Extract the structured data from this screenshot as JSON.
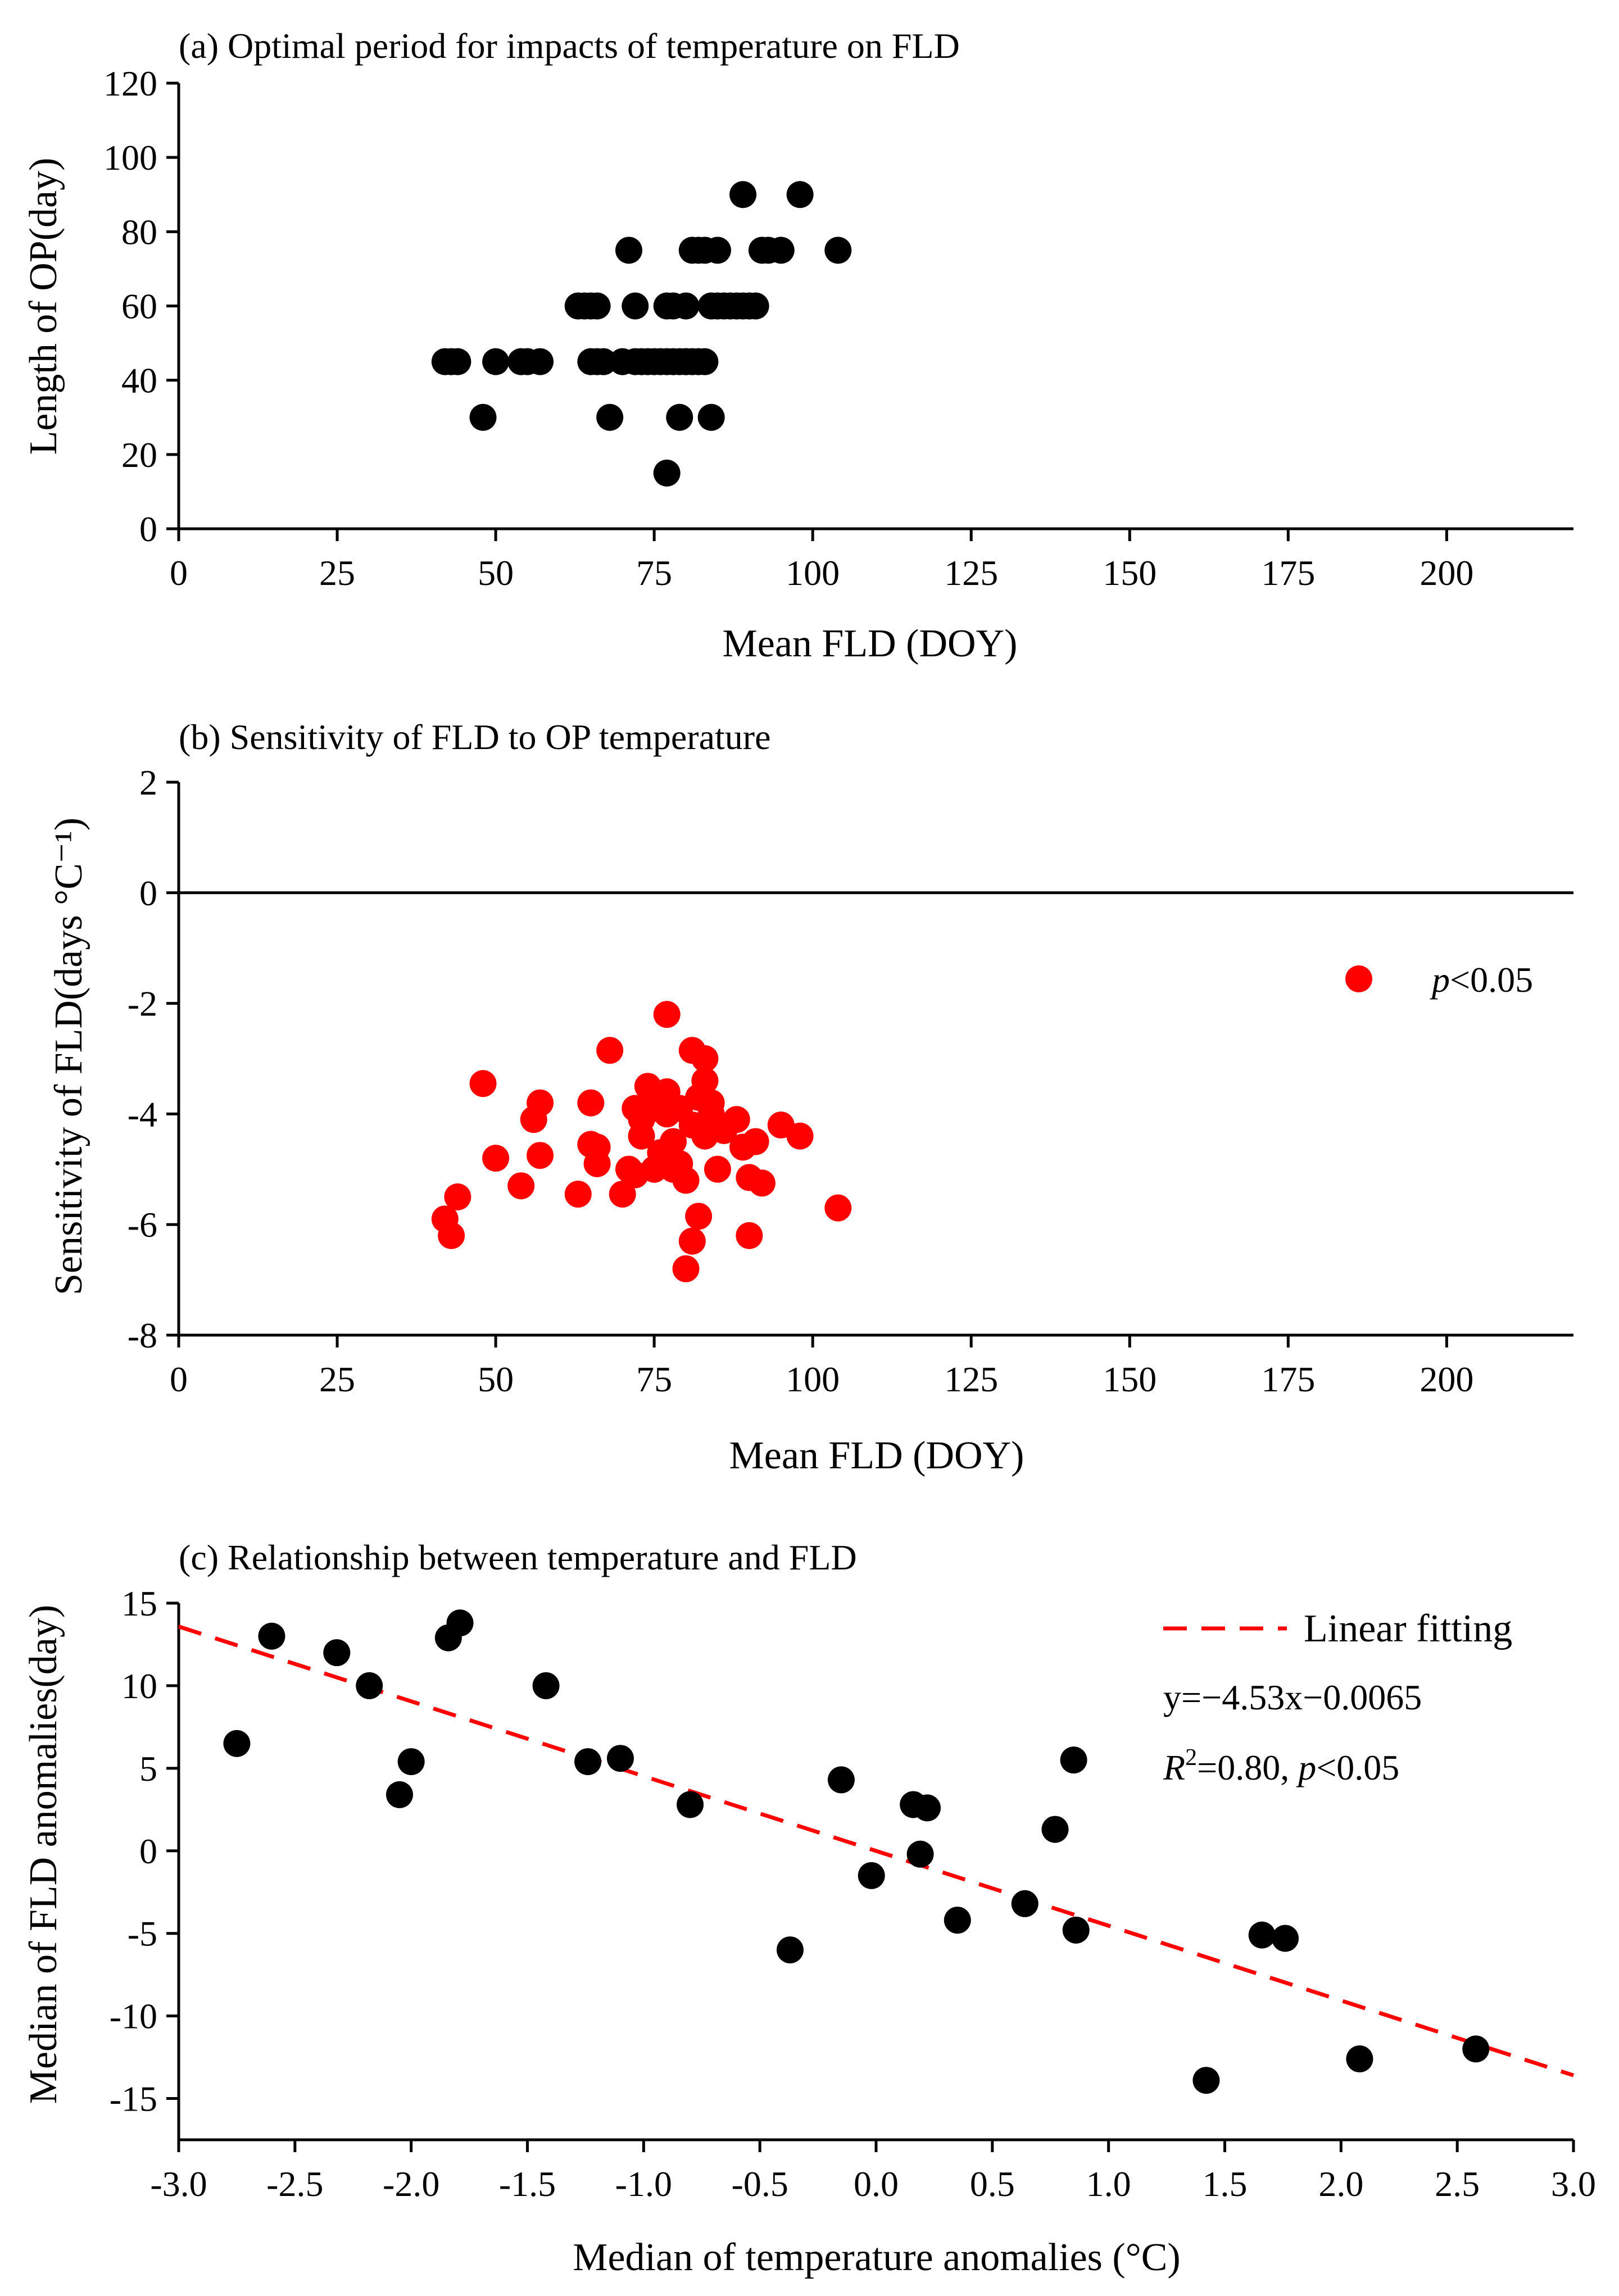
{
  "chart_data": [
    {
      "type": "scatter",
      "title": "(a) Optimal period for impacts of temperature on FLD",
      "xlabel": "Mean FLD (DOY)",
      "ylabel": "Length of OP(day)",
      "xlim": [
        0,
        220
      ],
      "ylim": [
        0,
        120
      ],
      "xticks": [
        0,
        25,
        50,
        75,
        100,
        125,
        150,
        175,
        200
      ],
      "yticks": [
        0,
        20,
        40,
        60,
        80,
        100,
        120
      ],
      "point_color": "#000000",
      "x": [
        42,
        43,
        44,
        48,
        50,
        54,
        55,
        57,
        63,
        64,
        65,
        65,
        66,
        66,
        67,
        68,
        70,
        71,
        72,
        72,
        73,
        74,
        75,
        76,
        77,
        77,
        77,
        78,
        78,
        79,
        79,
        80,
        80,
        80,
        81,
        81,
        82,
        82,
        83,
        83,
        84,
        84,
        85,
        85,
        86,
        87,
        88,
        89,
        89,
        90,
        91,
        92,
        93,
        95,
        98,
        104
      ],
      "y": [
        45,
        45,
        45,
        30,
        45,
        45,
        45,
        45,
        60,
        60,
        45,
        60,
        45,
        60,
        45,
        30,
        45,
        75,
        60,
        45,
        45,
        45,
        45,
        45,
        15,
        60,
        45,
        45,
        60,
        45,
        30,
        45,
        60,
        45,
        45,
        75,
        45,
        75,
        45,
        75,
        30,
        60,
        75,
        60,
        60,
        60,
        60,
        60,
        90,
        60,
        60,
        75,
        75,
        75,
        90,
        75
      ]
    },
    {
      "type": "scatter",
      "title": "(b) Sensitivity of FLD to OP temperature",
      "xlabel": "Mean FLD (DOY)",
      "ylabel": "Sensitivity of FLD(days °C⁻¹)",
      "xlim": [
        0,
        220
      ],
      "ylim": [
        -8,
        2
      ],
      "xticks": [
        0,
        25,
        50,
        75,
        100,
        125,
        150,
        175,
        200
      ],
      "yticks": [
        -8,
        -6,
        -4,
        -2,
        0,
        2
      ],
      "zero_line": true,
      "legend": {
        "label_italic": "p",
        "label_rest": "<0.05",
        "placement": "right"
      },
      "point_color": "#ff0000",
      "x": [
        42,
        43,
        44,
        48,
        50,
        54,
        56,
        57,
        57,
        63,
        65,
        65,
        66,
        66,
        68,
        70,
        71,
        72,
        72,
        73,
        73,
        74,
        75,
        75,
        76,
        77,
        77,
        77,
        78,
        78,
        79,
        79,
        80,
        80,
        81,
        81,
        81,
        82,
        82,
        83,
        83,
        83,
        84,
        84,
        85,
        86,
        88,
        89,
        90,
        90,
        91,
        92,
        95,
        98,
        104
      ],
      "y": [
        -5.9,
        -6.2,
        -5.5,
        -3.45,
        -4.8,
        -5.3,
        -4.1,
        -3.8,
        -4.75,
        -5.45,
        -3.8,
        -4.55,
        -4.9,
        -4.6,
        -2.85,
        -5.45,
        -5.0,
        -3.9,
        -5.1,
        -4.4,
        -4.1,
        -3.5,
        -3.9,
        -5.0,
        -4.7,
        -2.2,
        -3.6,
        -4.0,
        -4.5,
        -5.0,
        -3.9,
        -4.9,
        -6.8,
        -5.2,
        -2.85,
        -4.2,
        -6.3,
        -5.85,
        -3.7,
        -3.0,
        -3.4,
        -4.4,
        -4.0,
        -3.8,
        -5.0,
        -4.3,
        -4.1,
        -4.6,
        -5.15,
        -6.2,
        -4.5,
        -5.25,
        -4.2,
        -4.4,
        -5.7
      ]
    },
    {
      "type": "scatter",
      "title": "(c) Relationship between temperature and FLD",
      "xlabel": "Median of temperature anomalies (°C)",
      "ylabel": "Median of FLD anomalies(day)",
      "xlim": [
        -3.0,
        3.0
      ],
      "ylim": [
        -17.5,
        15
      ],
      "xticks": [
        -3.0,
        -2.5,
        -2.0,
        -1.5,
        -1.0,
        -0.5,
        0.0,
        0.5,
        1.0,
        1.5,
        2.0,
        2.5,
        3.0
      ],
      "xtick_labels": [
        "-3.0",
        "-2.5",
        "-2.0",
        "-1.5",
        "-1.0",
        "-0.5",
        "0.0",
        "0.5",
        "1.0",
        "1.5",
        "2.0",
        "2.5",
        "3.0"
      ],
      "yticks": [
        -15,
        -10,
        -5,
        0,
        5,
        10,
        15
      ],
      "point_color": "#000000",
      "x": [
        -2.75,
        -2.6,
        -2.32,
        -2.18,
        -2.05,
        -2.0,
        -1.84,
        -1.79,
        -1.42,
        -1.24,
        -1.1,
        -0.8,
        -0.37,
        -0.15,
        -0.02,
        0.16,
        0.19,
        0.22,
        0.35,
        0.64,
        0.77,
        0.85,
        0.86,
        1.42,
        1.66,
        1.76,
        2.08,
        2.58
      ],
      "y": [
        6.5,
        13.0,
        12.0,
        10.0,
        3.4,
        5.4,
        12.9,
        13.8,
        10.0,
        5.4,
        5.6,
        2.8,
        -6.0,
        4.3,
        -1.5,
        2.8,
        -0.2,
        2.6,
        -4.2,
        -3.2,
        1.3,
        5.5,
        -4.8,
        -13.9,
        -5.1,
        -5.3,
        -12.6,
        -12.0
      ],
      "fit": {
        "slope": -4.53,
        "intercept": -0.0065,
        "color": "#ff0000",
        "style": "dashed"
      },
      "legend_label": "Linear fitting",
      "equation": "y=−4.53x−0.0065",
      "r2_base": "R",
      "r2_sup": "2",
      "r2_value": "=0.80, ",
      "p_italic": "p",
      "p_rest": "<0.05"
    }
  ]
}
